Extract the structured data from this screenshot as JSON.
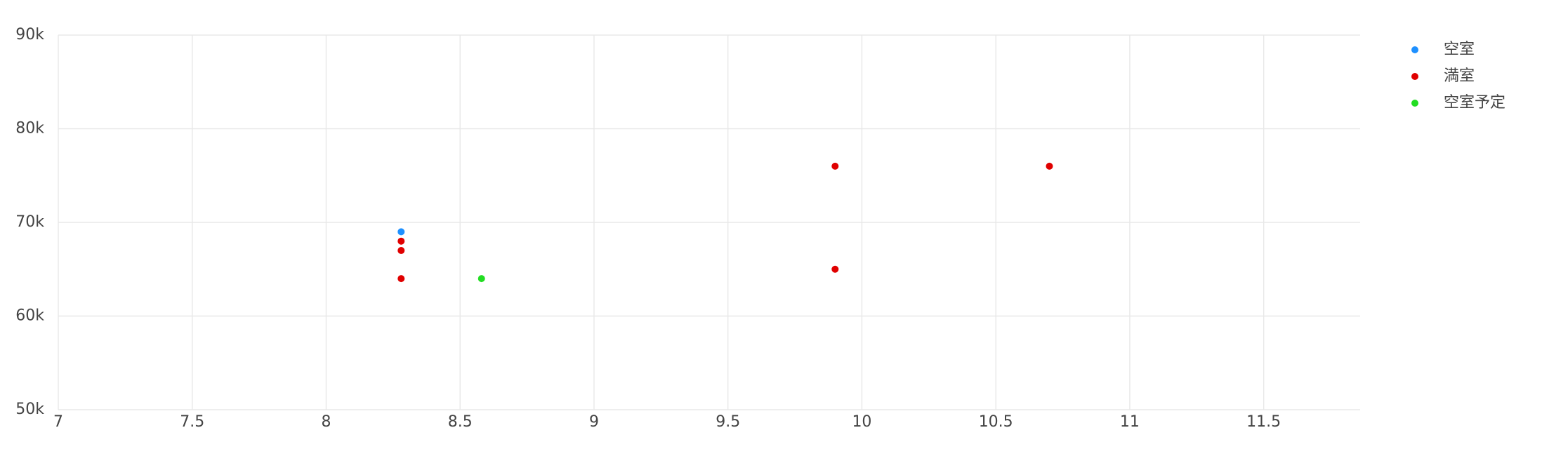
{
  "chart_data": {
    "type": "scatter",
    "xlim": [
      7,
      11.86
    ],
    "ylim": [
      50000,
      90000
    ],
    "xticks": [
      7,
      7.5,
      8,
      8.5,
      9,
      9.5,
      10,
      10.5,
      11,
      11.5
    ],
    "yticks": [
      {
        "value": 50000,
        "label": "50k"
      },
      {
        "value": 60000,
        "label": "60k"
      },
      {
        "value": 70000,
        "label": "70k"
      },
      {
        "value": 80000,
        "label": "80k"
      },
      {
        "value": 90000,
        "label": "90k"
      }
    ],
    "grid": true,
    "legend": "top-right",
    "series": [
      {
        "name": "空室",
        "color": "#1e90ff",
        "x": [
          8.28
        ],
        "values": [
          69000
        ]
      },
      {
        "name": "満室",
        "color": "#e00000",
        "x": [
          8.28,
          8.28,
          8.28,
          9.9,
          9.9,
          10.7
        ],
        "values": [
          68000,
          67000,
          64000,
          76000,
          65000,
          76000
        ]
      },
      {
        "name": "空室予定",
        "color": "#22dd22",
        "x": [
          8.58
        ],
        "values": [
          64000
        ]
      }
    ]
  }
}
